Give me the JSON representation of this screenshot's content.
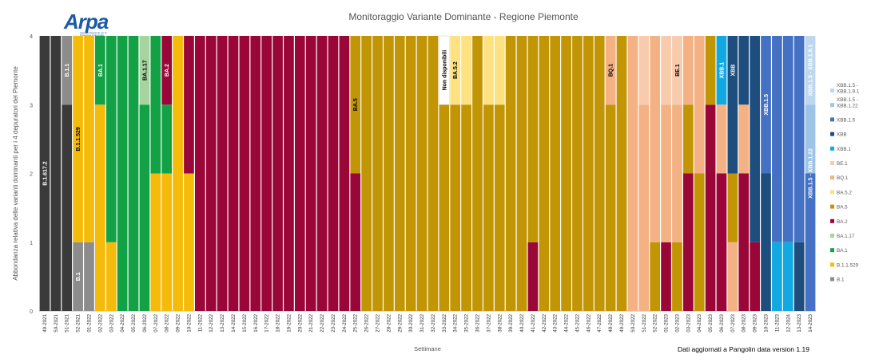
{
  "logo": {
    "text": "Arpa",
    "subtext": "Agenzia Regionale per la Protezione Ambientale"
  },
  "footer_note": "Dati aggiornati a Pangolin data version 1.19",
  "chart_data": {
    "type": "bar",
    "stacked": true,
    "title": "Monitoraggio Variante Dominante - Regione Piemonte",
    "xlabel": "Settimane",
    "ylabel": "Abbondanza relativa delle varianti dominanti per i 4 depuratori del Piemonte",
    "ylim": [
      0,
      4
    ],
    "yticks": [
      "0",
      "1",
      "2",
      "3",
      "4"
    ],
    "legend_position": "right",
    "colors": {
      "B.1.617.2": "#3a3a3a",
      "B.1": "#8c8c8c",
      "B.1.1": "#8c8c8c",
      "B.1.1.529": "#f5bb0b",
      "BA.1": "#13a146",
      "BA.1.17": "#a6d49f",
      "BA.2": "#9b0638",
      "BA.5": "#c29505",
      "BA.5.2": "#fee181",
      "BQ.1": "#f4b183",
      "BE.1": "#f8cbad",
      "XBB.1": "#12a9e3",
      "XBB": "#1d4e7e",
      "XBB.1.5": "#4471c4",
      "XBB.1.5 - XBB.1.22": "#9dc3e6",
      "XBB.1.5 - XBB.1.9.1": "#bdd7ee",
      "Non disponibili": "#ffffff"
    },
    "legend": [
      "XBB.1.5 - XBB.1.9.1",
      "XBB.1.5 - XBB.1.22",
      "XBB.1.5",
      "XBB",
      "XBB.1",
      "BE.1",
      "BQ.1",
      "BA.5.2",
      "BA.5",
      "BA.2",
      "BA.1.17",
      "BA.1",
      "B.1.1.529",
      "B.1"
    ],
    "categories": [
      "49-2021",
      "50-2021",
      "51-2021",
      "52-2021",
      "01-2022",
      "02-2022",
      "03-2022",
      "04-2022",
      "05-2022",
      "06-2022",
      "07-2022",
      "08-2022",
      "09-2022",
      "10-2022",
      "11-2022",
      "12-2022",
      "13-2022",
      "14-2022",
      "15-2022",
      "16-2022",
      "17-2022",
      "18-2022",
      "19-2022",
      "20-2022",
      "21-2022",
      "22-2022",
      "23-2022",
      "24-2022",
      "25-2022",
      "26-2022",
      "27-2022",
      "28-2022",
      "29-2022",
      "30-2022",
      "31-2022",
      "32-2022",
      "33-2022",
      "34-2022",
      "35-2022",
      "36-2022",
      "37-2022",
      "38-2022",
      "39-2022",
      "40-2022",
      "41-2022",
      "42-2022",
      "43-2022",
      "44-2022",
      "45-2022",
      "46-2022",
      "47-2022",
      "48-2022",
      "49-2022",
      "50-2022",
      "51-2022",
      "52-2022",
      "01-2023",
      "02-2023",
      "03-2023",
      "04-2023",
      "05-2023",
      "06-2023",
      "07-2023",
      "08-2023",
      "09-2023",
      "10-2023",
      "11-2023",
      "12-2024",
      "13-2023",
      "14-2023"
    ],
    "stacks": [
      [
        [
          "B.1.617.2",
          4
        ]
      ],
      [
        [
          "B.1.617.2",
          4
        ]
      ],
      [
        [
          "B.1.617.2",
          3
        ],
        [
          "B.1.1",
          1
        ]
      ],
      [
        [
          "B.1",
          1
        ],
        [
          "B.1.1.529",
          3
        ]
      ],
      [
        [
          "B.1",
          1
        ],
        [
          "B.1.1.529",
          3
        ]
      ],
      [
        [
          "B.1.1.529",
          3
        ],
        [
          "BA.1",
          1
        ]
      ],
      [
        [
          "B.1.1.529",
          1
        ],
        [
          "BA.1",
          3
        ]
      ],
      [
        [
          "BA.1",
          4
        ]
      ],
      [
        [
          "BA.1",
          4
        ]
      ],
      [
        [
          "BA.1",
          3
        ],
        [
          "BA.1.17",
          1
        ]
      ],
      [
        [
          "B.1.1.529",
          2
        ],
        [
          "BA.1",
          2
        ]
      ],
      [
        [
          "B.1.1.529",
          2
        ],
        [
          "BA.1",
          1
        ],
        [
          "BA.2",
          1
        ]
      ],
      [
        [
          "B.1.1.529",
          4
        ]
      ],
      [
        [
          "B.1.1.529",
          2
        ],
        [
          "BA.2",
          2
        ]
      ],
      [
        [
          "BA.2",
          4
        ]
      ],
      [
        [
          "BA.2",
          4
        ]
      ],
      [
        [
          "BA.2",
          4
        ]
      ],
      [
        [
          "BA.2",
          4
        ]
      ],
      [
        [
          "BA.2",
          4
        ]
      ],
      [
        [
          "BA.2",
          4
        ]
      ],
      [
        [
          "BA.2",
          4
        ]
      ],
      [
        [
          "BA.2",
          4
        ]
      ],
      [
        [
          "BA.2",
          4
        ]
      ],
      [
        [
          "BA.2",
          4
        ]
      ],
      [
        [
          "BA.2",
          4
        ]
      ],
      [
        [
          "BA.2",
          4
        ]
      ],
      [
        [
          "BA.2",
          4
        ]
      ],
      [
        [
          "BA.2",
          4
        ]
      ],
      [
        [
          "BA.2",
          2
        ],
        [
          "BA.5",
          2
        ]
      ],
      [
        [
          "BA.5",
          4
        ]
      ],
      [
        [
          "BA.5",
          4
        ]
      ],
      [
        [
          "BA.5",
          4
        ]
      ],
      [
        [
          "BA.5",
          4
        ]
      ],
      [
        [
          "BA.5",
          4
        ]
      ],
      [
        [
          "BA.5",
          4
        ]
      ],
      [
        [
          "BA.5",
          4
        ]
      ],
      [
        [
          "BA.5",
          3
        ],
        [
          "Non disponibili",
          1
        ]
      ],
      [
        [
          "BA.5",
          3
        ],
        [
          "BA.5.2",
          1
        ]
      ],
      [
        [
          "BA.5",
          3
        ],
        [
          "BA.5.2",
          1
        ]
      ],
      [
        [
          "BA.5",
          4
        ]
      ],
      [
        [
          "BA.5",
          3
        ],
        [
          "BA.5.2",
          1
        ]
      ],
      [
        [
          "BA.5",
          3
        ],
        [
          "BA.5.2",
          1
        ]
      ],
      [
        [
          "BA.5",
          4
        ]
      ],
      [
        [
          "BA.5",
          4
        ]
      ],
      [
        [
          "BA.2",
          1
        ],
        [
          "BA.5",
          3
        ]
      ],
      [
        [
          "BA.5",
          4
        ]
      ],
      [
        [
          "BA.5",
          4
        ]
      ],
      [
        [
          "BA.5",
          4
        ]
      ],
      [
        [
          "BA.5",
          4
        ]
      ],
      [
        [
          "BA.5",
          4
        ]
      ],
      [
        [
          "BA.5",
          4
        ]
      ],
      [
        [
          "BA.5",
          3
        ],
        [
          "BQ.1",
          1
        ]
      ],
      [
        [
          "BA.5",
          4
        ]
      ],
      [
        [
          "BQ.1",
          4
        ]
      ],
      [
        [
          "BQ.1",
          3
        ],
        [
          "BE.1",
          1
        ]
      ],
      [
        [
          "BA.5",
          1
        ],
        [
          "BQ.1",
          3
        ]
      ],
      [
        [
          "BA.2",
          1
        ],
        [
          "BQ.1",
          2
        ],
        [
          "BE.1",
          1
        ]
      ],
      [
        [
          "BA.5",
          1
        ],
        [
          "BQ.1",
          2
        ],
        [
          "BE.1",
          1
        ]
      ],
      [
        [
          "BA.2",
          2
        ],
        [
          "BA.5",
          1
        ],
        [
          "BQ.1",
          1
        ]
      ],
      [
        [
          "BA.5",
          2
        ],
        [
          "BQ.1",
          2
        ]
      ],
      [
        [
          "BA.2",
          3
        ],
        [
          "BA.5",
          1
        ]
      ],
      [
        [
          "BA.2",
          2
        ],
        [
          "BQ.1",
          1
        ],
        [
          "XBB.1",
          1
        ]
      ],
      [
        [
          "BQ.1",
          1
        ],
        [
          "BA.5",
          1
        ],
        [
          "XBB",
          2
        ]
      ],
      [
        [
          "BA.2",
          2
        ],
        [
          "BQ.1",
          1
        ],
        [
          "XBB",
          1
        ]
      ],
      [
        [
          "BA.2",
          1
        ],
        [
          "XBB",
          3
        ]
      ],
      [
        [
          "XBB",
          2
        ],
        [
          "XBB.1.5",
          2
        ]
      ],
      [
        [
          "XBB.1",
          1
        ],
        [
          "XBB.1.5",
          3
        ]
      ],
      [
        [
          "XBB.1",
          1
        ],
        [
          "XBB.1.5",
          3
        ]
      ],
      [
        [
          "XBB",
          1
        ],
        [
          "XBB.1.5",
          3
        ]
      ],
      [
        [
          "XBB.1.5",
          2
        ],
        [
          "XBB.1.5 - XBB.1.22",
          1
        ],
        [
          "XBB.1.5 - XBB.1.9.1",
          1
        ]
      ]
    ],
    "annotations": [
      {
        "index": 0,
        "text": "B.1.617.2",
        "y": 2
      },
      {
        "index": 2,
        "text": "B.1.1",
        "y": 3.5
      },
      {
        "index": 3,
        "text": "B.1",
        "y": 0.5
      },
      {
        "index": 3,
        "text": "B.1.1.529",
        "y": 2.5
      },
      {
        "index": 5,
        "text": "BA.1",
        "y": 3.5
      },
      {
        "index": 9,
        "text": "BA.1.17",
        "y": 3.5
      },
      {
        "index": 11,
        "text": "BA.2",
        "y": 3.5
      },
      {
        "index": 28,
        "text": "BA.5",
        "y": 3
      },
      {
        "index": 36,
        "text": "Non disponibili",
        "y": 3.5
      },
      {
        "index": 37,
        "text": "BA.5.2",
        "y": 3.5
      },
      {
        "index": 51,
        "text": "BQ.1",
        "y": 3.5
      },
      {
        "index": 57,
        "text": "BE.1",
        "y": 3.5
      },
      {
        "index": 61,
        "text": "XBB.1",
        "y": 3.5
      },
      {
        "index": 62,
        "text": "XBB",
        "y": 3.5
      },
      {
        "index": 65,
        "text": "XBB.1.5",
        "y": 3
      },
      {
        "index": 69,
        "text": "XBB.1.5 - XBB.1.22",
        "y": 2
      },
      {
        "index": 69,
        "text": "XBB.1.5 - XBB.1.9.1",
        "y": 3.5
      }
    ]
  }
}
